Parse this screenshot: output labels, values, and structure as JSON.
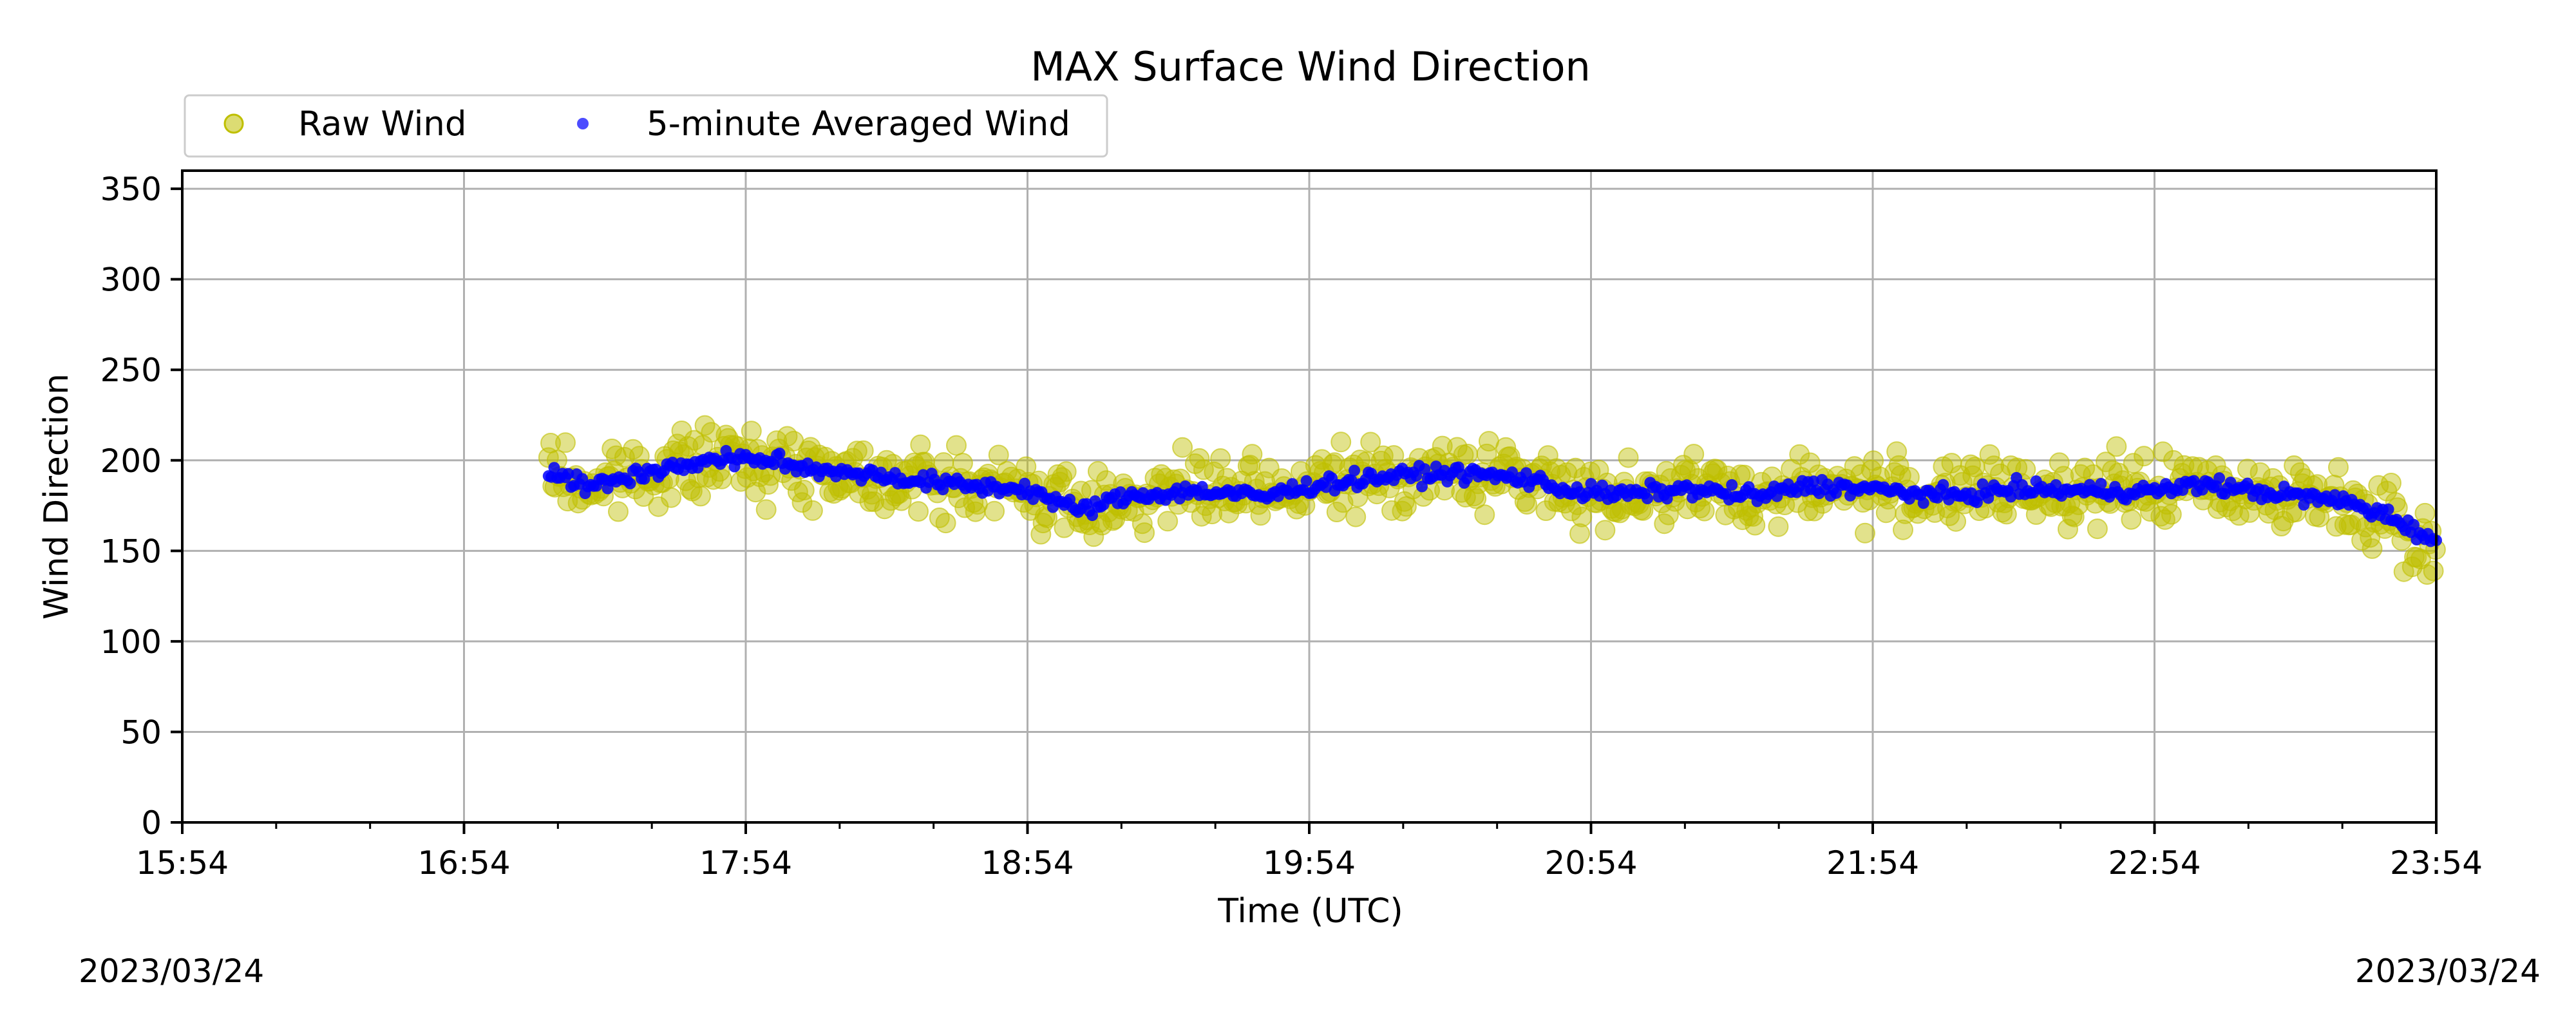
{
  "chart_data": {
    "type": "scatter",
    "title": "MAX Surface Wind Direction",
    "xlabel": "Time (UTC)",
    "ylabel": "Wind Direction",
    "x_tick_labels": [
      "15:54",
      "16:54",
      "17:54",
      "18:54",
      "19:54",
      "20:54",
      "21:54",
      "22:54",
      "23:54"
    ],
    "y_tick_labels": [
      "0",
      "50",
      "100",
      "150",
      "200",
      "250",
      "300",
      "350"
    ],
    "xlim": [
      "2023-03-24 15:54",
      "2023-03-24 23:54"
    ],
    "ylim": [
      0,
      360
    ],
    "grid": true,
    "legend_position": "top-left, above plot",
    "start_date": "2023/03/24",
    "end_date": "2023/03/24",
    "series": [
      {
        "name": "Raw Wind",
        "color": "#bfbf00",
        "marker": "circle",
        "note": "noisy scatter of raw readings, roughly ±15° around the averaged trace",
        "x": [
          "17:12",
          "17:54",
          "19:10",
          "20:10",
          "20:40",
          "21:40",
          "22:50",
          "23:54"
        ],
        "y": [
          190,
          200,
          170,
          185,
          190,
          180,
          185,
          140
        ]
      },
      {
        "name": "5-minute Averaged Wind",
        "color": "#0000ff",
        "marker": "circle",
        "x": [
          "17:12",
          "17:20",
          "17:30",
          "17:40",
          "17:54",
          "18:05",
          "18:15",
          "18:30",
          "18:40",
          "18:54",
          "19:05",
          "19:15",
          "19:30",
          "19:45",
          "19:54",
          "20:10",
          "20:25",
          "20:40",
          "20:50",
          "21:00",
          "21:15",
          "21:30",
          "21:40",
          "21:54",
          "22:10",
          "22:25",
          "22:40",
          "22:54",
          "23:05",
          "23:15",
          "23:25",
          "23:35",
          "23:45",
          "23:54"
        ],
        "y": [
          195,
          185,
          192,
          197,
          202,
          196,
          194,
          189,
          186,
          184,
          172,
          180,
          183,
          180,
          186,
          191,
          193,
          190,
          183,
          181,
          184,
          180,
          186,
          184,
          180,
          184,
          183,
          183,
          187,
          183,
          180,
          177,
          168,
          155
        ]
      }
    ]
  }
}
